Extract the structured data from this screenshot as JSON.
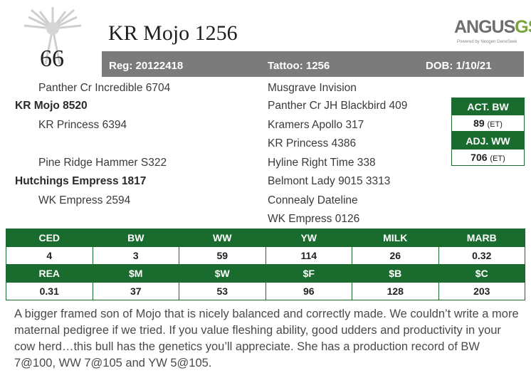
{
  "lot_number": "66",
  "animal_name": "KR Mojo 1256",
  "brand": {
    "main": "ANGUS",
    "accent": "GS",
    "tagline": "Powered by Neogen GeneSeek"
  },
  "reg": "Reg: 20122418",
  "tattoo": "Tattoo: 1256",
  "dob": "DOB: 1/10/21",
  "pedigree": {
    "sss": "Panther Cr Incredible 6704",
    "sire": "KR Mojo 8520",
    "ssd": "KR Princess 6394",
    "dss": "Pine Ridge Hammer S322",
    "dam": "Hutchings Empress 1817",
    "dsd": "WK Empress 2594",
    "right": [
      "Musgrave Invision",
      "Panther Cr JH Blackbird 409",
      "Kramers Apollo 317",
      "KR Princess 4386",
      "Hyline Right Time 338",
      "Belmont Lady 9015 3313",
      "Connealy Dateline",
      "WK Empress 0126"
    ]
  },
  "weights": {
    "act_bw_label": "ACT. BW",
    "act_bw_value": "89",
    "act_bw_note": "(ET)",
    "adj_ww_label": "ADJ. WW",
    "adj_ww_value": "706",
    "adj_ww_note": "(ET)"
  },
  "epd": {
    "row1_headers": [
      "CED",
      "BW",
      "WW",
      "YW",
      "MILK",
      "MARB"
    ],
    "row1_values": [
      "4",
      "3",
      "59",
      "114",
      "26",
      "0.32"
    ],
    "row2_headers": [
      "REA",
      "$M",
      "$W",
      "$F",
      "$B",
      "$C"
    ],
    "row2_values": [
      "0.31",
      "37",
      "53",
      "96",
      "128",
      "203"
    ]
  },
  "description": "A bigger framed son of Mojo that is nicely balanced and correctly made. We couldn’t write a more maternal pedigree if we tried.  If you value fleshing ability, good udders and productivity in your cow herd…this bull has the genetics you’ll appreciate. She has a production record of BW 7@100, WW 7@105 and YW 5@105.",
  "colors": {
    "green": "#1a6b2e",
    "grey_bar": "#7b7b7b",
    "accent_green": "#7aa33c"
  }
}
